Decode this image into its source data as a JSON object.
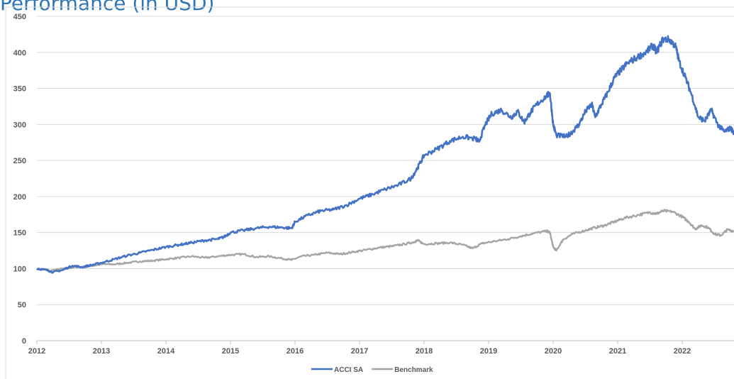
{
  "chart_data": {
    "type": "line",
    "title": "Performance (in USD)",
    "xlabel": "",
    "ylabel": "",
    "xlim": [
      2012,
      2022.8
    ],
    "ylim": [
      0,
      450
    ],
    "x_ticks": [
      "2012",
      "2013",
      "2014",
      "2015",
      "2016",
      "2017",
      "2018",
      "2019",
      "2020",
      "2021",
      "2022"
    ],
    "y_ticks": [
      "0",
      "50",
      "100",
      "150",
      "200",
      "250",
      "300",
      "350",
      "400",
      "450"
    ],
    "grid": "horizontal",
    "legend": "bottom-center",
    "series": [
      {
        "name": "ACCI SA",
        "color": "#4472c4",
        "points": [
          [
            2012.0,
            100
          ],
          [
            2012.15,
            98
          ],
          [
            2012.25,
            95
          ],
          [
            2012.4,
            98
          ],
          [
            2012.55,
            104
          ],
          [
            2012.7,
            102
          ],
          [
            2012.85,
            105
          ],
          [
            2013.0,
            108
          ],
          [
            2013.2,
            113
          ],
          [
            2013.4,
            118
          ],
          [
            2013.6,
            122
          ],
          [
            2013.8,
            126
          ],
          [
            2014.0,
            130
          ],
          [
            2014.2,
            133
          ],
          [
            2014.4,
            136
          ],
          [
            2014.6,
            139
          ],
          [
            2014.8,
            141
          ],
          [
            2014.9,
            144
          ],
          [
            2015.0,
            150
          ],
          [
            2015.2,
            153
          ],
          [
            2015.4,
            156
          ],
          [
            2015.6,
            158
          ],
          [
            2015.8,
            157
          ],
          [
            2015.95,
            156
          ],
          [
            2016.0,
            165
          ],
          [
            2016.2,
            174
          ],
          [
            2016.4,
            180
          ],
          [
            2016.6,
            182
          ],
          [
            2016.8,
            188
          ],
          [
            2017.0,
            197
          ],
          [
            2017.2,
            203
          ],
          [
            2017.4,
            210
          ],
          [
            2017.6,
            216
          ],
          [
            2017.8,
            225
          ],
          [
            2017.9,
            240
          ],
          [
            2018.0,
            257
          ],
          [
            2018.2,
            266
          ],
          [
            2018.4,
            277
          ],
          [
            2018.6,
            283
          ],
          [
            2018.8,
            280
          ],
          [
            2018.85,
            276
          ],
          [
            2018.95,
            300
          ],
          [
            2019.05,
            315
          ],
          [
            2019.2,
            320
          ],
          [
            2019.35,
            310
          ],
          [
            2019.45,
            318
          ],
          [
            2019.55,
            303
          ],
          [
            2019.65,
            317
          ],
          [
            2019.75,
            328
          ],
          [
            2019.9,
            340
          ],
          [
            2019.95,
            343
          ],
          [
            2020.0,
            300
          ],
          [
            2020.05,
            285
          ],
          [
            2020.2,
            283
          ],
          [
            2020.3,
            290
          ],
          [
            2020.4,
            300
          ],
          [
            2020.5,
            318
          ],
          [
            2020.6,
            328
          ],
          [
            2020.65,
            310
          ],
          [
            2020.75,
            328
          ],
          [
            2020.85,
            345
          ],
          [
            2020.95,
            365
          ],
          [
            2021.05,
            375
          ],
          [
            2021.15,
            385
          ],
          [
            2021.3,
            393
          ],
          [
            2021.45,
            401
          ],
          [
            2021.55,
            410
          ],
          [
            2021.6,
            400
          ],
          [
            2021.7,
            418
          ],
          [
            2021.8,
            418
          ],
          [
            2021.9,
            408
          ],
          [
            2021.95,
            388
          ],
          [
            2022.05,
            365
          ],
          [
            2022.15,
            340
          ],
          [
            2022.25,
            310
          ],
          [
            2022.35,
            305
          ],
          [
            2022.45,
            320
          ],
          [
            2022.55,
            300
          ],
          [
            2022.65,
            290
          ],
          [
            2022.75,
            295
          ],
          [
            2022.8,
            288
          ]
        ]
      },
      {
        "name": "Benchmark",
        "color": "#a5a5a5",
        "points": [
          [
            2012.0,
            100
          ],
          [
            2012.2,
            97
          ],
          [
            2012.4,
            100
          ],
          [
            2012.6,
            102
          ],
          [
            2012.8,
            103
          ],
          [
            2013.0,
            106
          ],
          [
            2013.2,
            106
          ],
          [
            2013.4,
            108
          ],
          [
            2013.6,
            110
          ],
          [
            2013.8,
            111
          ],
          [
            2014.0,
            113
          ],
          [
            2014.2,
            115
          ],
          [
            2014.4,
            117
          ],
          [
            2014.6,
            115
          ],
          [
            2014.8,
            117
          ],
          [
            2015.0,
            119
          ],
          [
            2015.2,
            120
          ],
          [
            2015.4,
            116
          ],
          [
            2015.6,
            117
          ],
          [
            2015.8,
            114
          ],
          [
            2015.95,
            112
          ],
          [
            2016.1,
            117
          ],
          [
            2016.3,
            119
          ],
          [
            2016.5,
            122
          ],
          [
            2016.7,
            120
          ],
          [
            2016.9,
            123
          ],
          [
            2017.1,
            126
          ],
          [
            2017.3,
            129
          ],
          [
            2017.5,
            131
          ],
          [
            2017.7,
            134
          ],
          [
            2017.85,
            137
          ],
          [
            2017.9,
            139
          ],
          [
            2018.0,
            134
          ],
          [
            2018.2,
            135
          ],
          [
            2018.4,
            136
          ],
          [
            2018.6,
            133
          ],
          [
            2018.75,
            128
          ],
          [
            2018.9,
            135
          ],
          [
            2019.1,
            138
          ],
          [
            2019.3,
            141
          ],
          [
            2019.5,
            145
          ],
          [
            2019.7,
            149
          ],
          [
            2019.9,
            152
          ],
          [
            2019.95,
            150
          ],
          [
            2020.0,
            130
          ],
          [
            2020.05,
            125
          ],
          [
            2020.15,
            140
          ],
          [
            2020.3,
            148
          ],
          [
            2020.5,
            153
          ],
          [
            2020.65,
            157
          ],
          [
            2020.8,
            160
          ],
          [
            2020.95,
            165
          ],
          [
            2021.1,
            170
          ],
          [
            2021.3,
            174
          ],
          [
            2021.5,
            178
          ],
          [
            2021.6,
            176
          ],
          [
            2021.7,
            180
          ],
          [
            2021.85,
            179
          ],
          [
            2022.0,
            172
          ],
          [
            2022.1,
            165
          ],
          [
            2022.2,
            155
          ],
          [
            2022.3,
            160
          ],
          [
            2022.4,
            157
          ],
          [
            2022.5,
            148
          ],
          [
            2022.6,
            146
          ],
          [
            2022.7,
            154
          ],
          [
            2022.8,
            152
          ]
        ]
      }
    ]
  },
  "colors": {
    "gridline": "#d9d9d9",
    "axis": "#bfbfbf",
    "tick_text": "#595959",
    "title": "#2e75b6"
  }
}
